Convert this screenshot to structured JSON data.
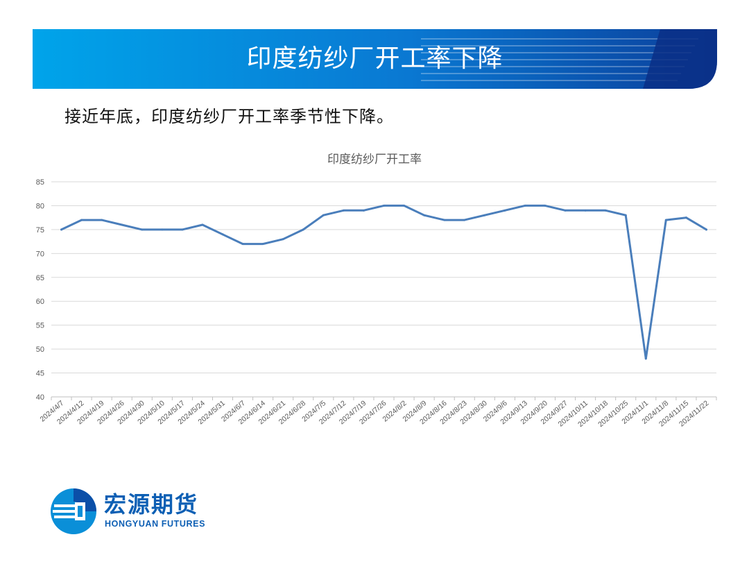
{
  "slide": {
    "title": "印度纺纱厂开工率下降",
    "subtitle": "接近年底，印度纺纱厂开工率季节性下降。"
  },
  "brand": {
    "name_cn": "宏源期货",
    "name_en": "HONGYUAN FUTURES",
    "primary_color": "#0d5fb4",
    "banner_colors": [
      "#00a0e9",
      "#0b3f9b"
    ]
  },
  "chart_data": {
    "type": "line",
    "title": "印度纺纱厂开工率",
    "xlabel": "",
    "ylabel": "",
    "ylim": [
      40,
      85
    ],
    "yticks": [
      40,
      45,
      50,
      55,
      60,
      65,
      70,
      75,
      80,
      85
    ],
    "grid": true,
    "legend": "none",
    "line_color": "#4a7ebb",
    "categories": [
      "2024/4/7",
      "2024/4/12",
      "2024/4/19",
      "2024/4/26",
      "2024/4/30",
      "2024/5/10",
      "2024/5/17",
      "2024/5/24",
      "2024/5/31",
      "2024/6/7",
      "2024/6/14",
      "2024/6/21",
      "2024/6/28",
      "2024/7/5",
      "2024/7/12",
      "2024/7/19",
      "2024/7/26",
      "2024/8/2",
      "2024/8/9",
      "2024/8/16",
      "2024/8/23",
      "2024/8/30",
      "2024/9/6",
      "2024/9/13",
      "2024/9/20",
      "2024/9/27",
      "2024/10/11",
      "2024/10/18",
      "2024/10/25",
      "2024/11/1",
      "2024/11/8",
      "2024/11/15",
      "2024/11/22"
    ],
    "series": [
      {
        "values": [
          75,
          77,
          77,
          76,
          75,
          75,
          75,
          76,
          74,
          72,
          72,
          73,
          75,
          78,
          79,
          79,
          80,
          80,
          78,
          77,
          77,
          78,
          79,
          80,
          80,
          79,
          79,
          79,
          78,
          48,
          77,
          77.5,
          75
        ]
      }
    ]
  }
}
